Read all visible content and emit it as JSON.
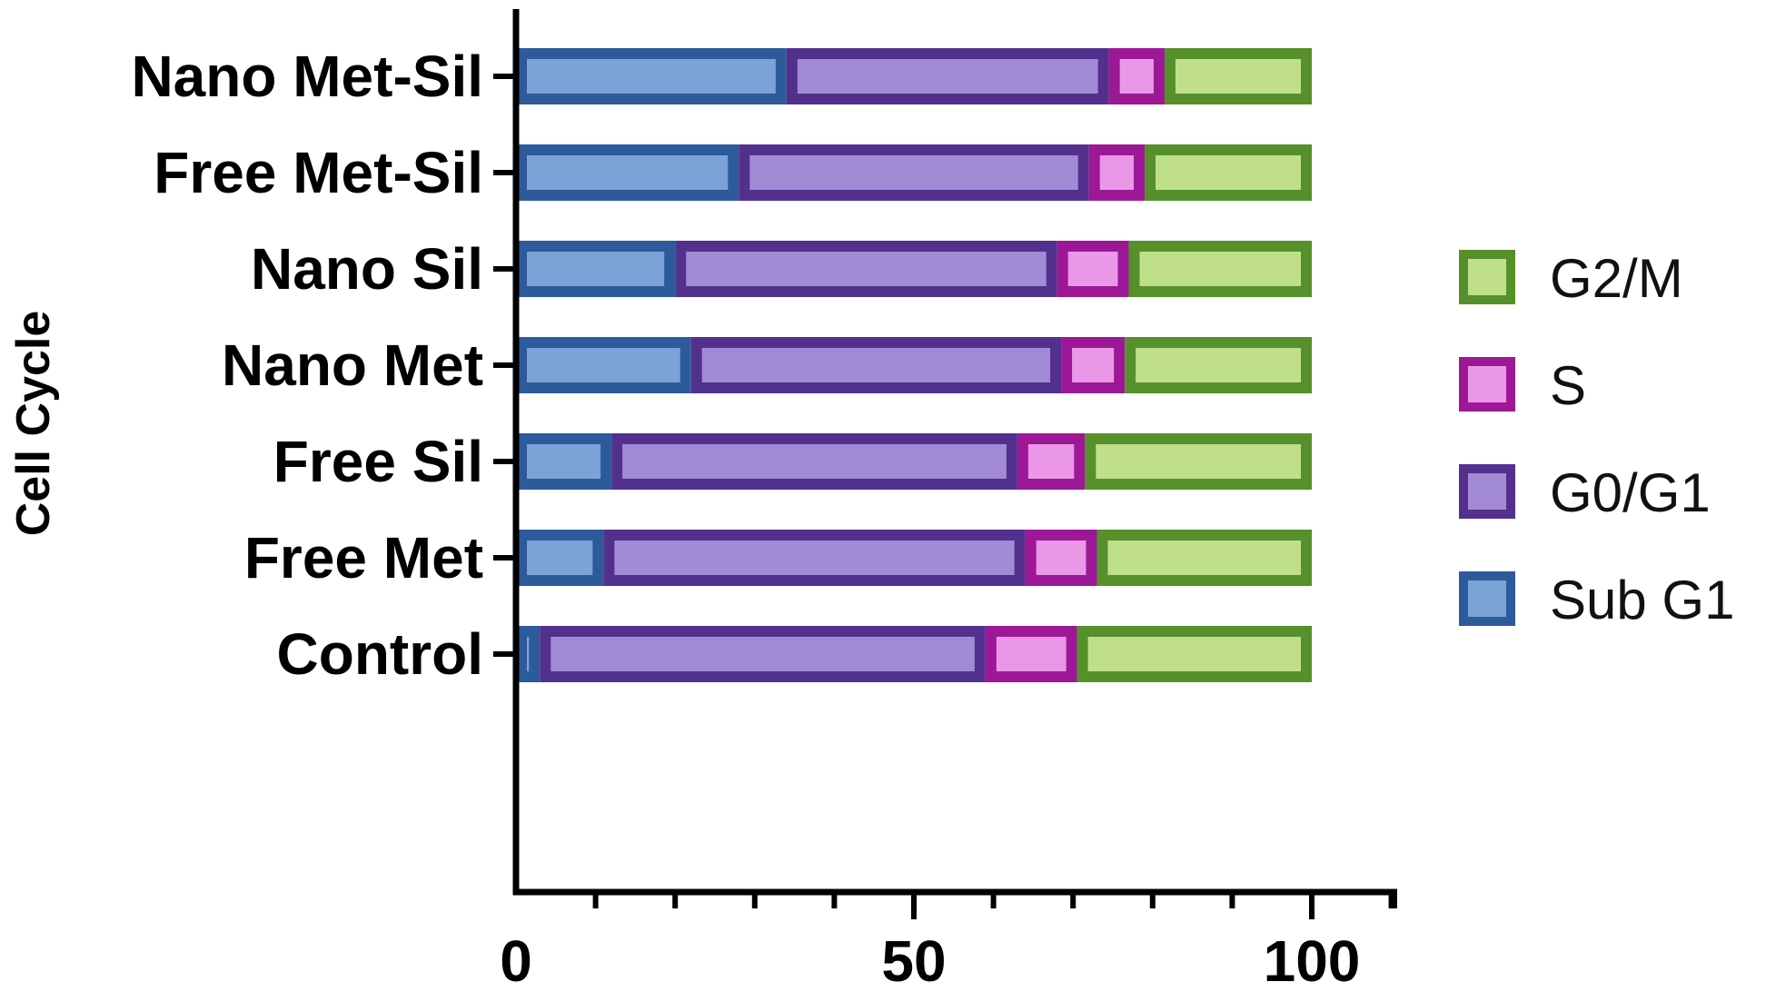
{
  "chart_data": {
    "type": "bar",
    "orientation": "horizontal",
    "stacked": true,
    "ylabel": "Cell Cycle",
    "xlabel": "",
    "categories": [
      "Control",
      "Free Met",
      "Free Sil",
      "Nano Met",
      "Nano Sil",
      "Free Met-Sil",
      "Nano Met-Sil"
    ],
    "series": [
      {
        "name": "Sub G1",
        "values": [
          3,
          11,
          12,
          22,
          20,
          28,
          34
        ],
        "fill": "#7ba3d6",
        "stroke": "#2d5a9a"
      },
      {
        "name": "G0/G1",
        "values": [
          56,
          53,
          51,
          46.5,
          48,
          44,
          40.5
        ],
        "fill": "#a38ad4",
        "stroke": "#53308e"
      },
      {
        "name": "S",
        "values": [
          11.5,
          9,
          8.5,
          8,
          9,
          7,
          7
        ],
        "fill": "#ea97e8",
        "stroke": "#9c1896"
      },
      {
        "name": "G2/M",
        "values": [
          29.5,
          27,
          28.5,
          23.5,
          23,
          21,
          18.5
        ],
        "fill": "#bfdf8b",
        "stroke": "#56902a"
      }
    ],
    "xlim": [
      0,
      110
    ],
    "xticks": [
      0,
      50,
      100
    ],
    "xtick_labels": [
      "0",
      "50",
      "100"
    ],
    "minor_tick_step": 10,
    "legend": {
      "position": "right",
      "order": [
        "G2/M",
        "S",
        "G0/G1",
        "Sub G1"
      ]
    },
    "grid": false
  }
}
